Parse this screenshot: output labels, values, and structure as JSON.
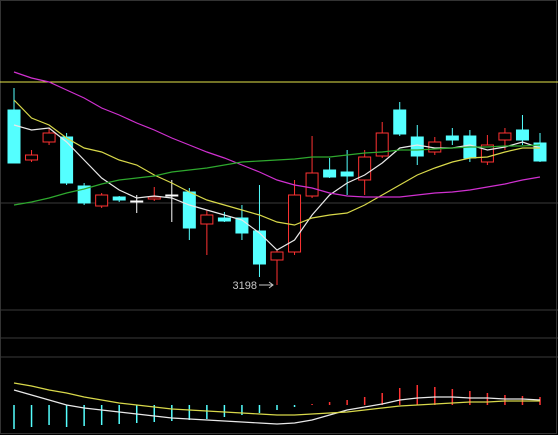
{
  "chart_data": [
    {
      "type": "candlestick",
      "open": [
        3373,
        3323,
        3341,
        3346,
        3297,
        3277,
        3286,
        3282,
        3284,
        3288,
        3291,
        3259,
        3265,
        3265,
        3252,
        3223,
        3231,
        3287,
        3313,
        3311,
        3303,
        3327,
        3373,
        3346,
        3331,
        3347,
        3347,
        3321,
        3343,
        3353,
        3340
      ],
      "high": [
        3395,
        3333,
        3355,
        3350,
        3300,
        3290,
        3287,
        3288,
        3296,
        3303,
        3295,
        3273,
        3271,
        3278,
        3298,
        3233,
        3303,
        3347,
        3325,
        3333,
        3333,
        3361,
        3381,
        3358,
        3346,
        3355,
        3353,
        3348,
        3355,
        3368,
        3350
      ],
      "low": [
        3320,
        3321,
        3338,
        3298,
        3278,
        3275,
        3281,
        3270,
        3282,
        3261,
        3243,
        3228,
        3261,
        3243,
        3206,
        3198,
        3228,
        3285,
        3305,
        3288,
        3288,
        3325,
        3347,
        3318,
        3328,
        3338,
        3321,
        3318,
        3333,
        3338,
        3321
      ],
      "close": [
        3320,
        3328,
        3350,
        3300,
        3280,
        3288,
        3283,
        3282,
        3286,
        3288,
        3255,
        3268,
        3262,
        3250,
        3219,
        3231,
        3288,
        3310,
        3306,
        3307,
        3326,
        3350,
        3349,
        3327,
        3341,
        3343,
        3325,
        3338,
        3350,
        3343,
        3322
      ],
      "up_color": "#ff3232",
      "down_color": "#54ffff",
      "ylim": [
        3173,
        3483
      ],
      "ref_lines": [
        {
          "value": 3401,
          "color": "#e5e54a"
        },
        {
          "value": 3280,
          "color": "#3a3a3a"
        }
      ],
      "series": [
        {
          "color": "#e8e8e8",
          "values": [
            3358,
            3353,
            3355,
            3341,
            3323,
            3305,
            3293,
            3285,
            3287,
            3285,
            3278,
            3273,
            3268,
            3263,
            3250,
            3233,
            3243,
            3268,
            3288,
            3300,
            3308,
            3320,
            3335,
            3338,
            3335,
            3335,
            3338,
            3333,
            3336,
            3341,
            3335
          ]
        },
        {
          "color": "#d8d84a",
          "values": [
            3383,
            3365,
            3358,
            3345,
            3335,
            3331,
            3323,
            3318,
            3308,
            3300,
            3291,
            3283,
            3278,
            3273,
            3268,
            3261,
            3258,
            3265,
            3268,
            3270,
            3278,
            3288,
            3298,
            3308,
            3315,
            3321,
            3325,
            3326,
            3331,
            3335,
            3335
          ]
        },
        {
          "color": "#d030d0",
          "values": [
            3411,
            3405,
            3401,
            3393,
            3385,
            3375,
            3368,
            3360,
            3353,
            3345,
            3338,
            3331,
            3325,
            3318,
            3311,
            3303,
            3298,
            3295,
            3290,
            3287,
            3286,
            3286,
            3286,
            3288,
            3290,
            3291,
            3293,
            3296,
            3299,
            3303,
            3306
          ]
        },
        {
          "color": "#2ea82e",
          "values": [
            3278,
            3281,
            3285,
            3290,
            3294,
            3299,
            3303,
            3305,
            3307,
            3311,
            3313,
            3315,
            3318,
            3321,
            3322,
            3323,
            3324,
            3326,
            3326,
            3328,
            3330,
            3331,
            3333,
            3333,
            3334,
            3335,
            3336,
            3336,
            3337,
            3337,
            3338
          ]
        }
      ]
    },
    {
      "type": "macd",
      "values": [
        -24,
        -22,
        -20,
        -22,
        -21,
        -20,
        -19,
        -18,
        -17,
        -16,
        -15,
        -14,
        -12,
        -10,
        -8,
        -5,
        -2,
        1,
        3,
        5,
        8,
        12,
        17,
        20,
        18,
        16,
        14,
        12,
        10,
        9,
        8
      ],
      "up_color": "#ff3232",
      "down_color": "#54ffff",
      "ylim": [
        -30,
        35
      ],
      "series": [
        {
          "color": "#e8e8e8",
          "values": [
            15,
            10,
            5,
            0,
            -3,
            -5,
            -7,
            -9,
            -11,
            -13,
            -14,
            -15,
            -16,
            -17,
            -18,
            -19,
            -18,
            -15,
            -10,
            -5,
            -2,
            1,
            5,
            7,
            8,
            8,
            7,
            7,
            6,
            6,
            5
          ]
        },
        {
          "color": "#d8d84a",
          "values": [
            22,
            19,
            15,
            12,
            8,
            5,
            2,
            0,
            -2,
            -4,
            -5,
            -6,
            -7,
            -8,
            -9,
            -10,
            -10,
            -9,
            -8,
            -7,
            -5,
            -3,
            -1,
            0,
            1,
            2,
            3,
            3,
            4,
            4,
            4
          ]
        }
      ]
    }
  ]
}
